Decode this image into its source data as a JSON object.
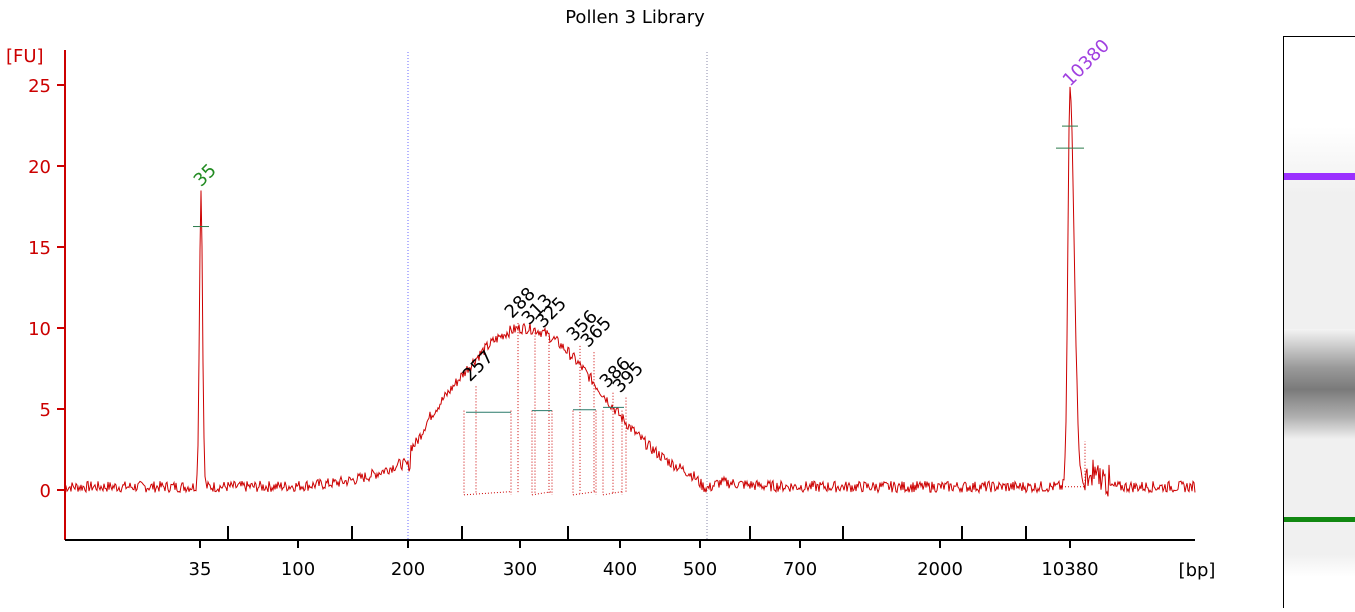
{
  "chart_data": {
    "type": "line",
    "title": "Pollen 3 Library",
    "ylabel": "[FU]",
    "xlabel": "[bp]",
    "y_ticks": [
      0,
      5,
      10,
      15,
      20,
      25
    ],
    "ylim": [
      -3,
      27
    ],
    "x_tick_labels": [
      "35",
      "100",
      "200",
      "300",
      "400",
      "500",
      "700",
      "2000",
      "10380"
    ],
    "series_color": "#cc0000",
    "marker_peaks": [
      {
        "label": "35",
        "height": 18.3,
        "color": "#228b22"
      },
      {
        "label": "10380",
        "height": 24.5,
        "color": "#a040e0"
      }
    ],
    "library_peaks": [
      {
        "label": "257",
        "height": 6.4
      },
      {
        "label": "288",
        "height": 10.3
      },
      {
        "label": "313",
        "height": 9.9
      },
      {
        "label": "325",
        "height": 9.7
      },
      {
        "label": "356",
        "height": 8.9
      },
      {
        "label": "365",
        "height": 8.5
      },
      {
        "label": "386",
        "height": 6.0
      },
      {
        "label": "395",
        "height": 5.7
      }
    ],
    "smear_region": {
      "from": "200",
      "to": "520"
    },
    "baseline": 0.2,
    "grid": false
  },
  "gel": {
    "upper_marker_color": "#9b30ff",
    "lower_marker_color": "#118811"
  }
}
